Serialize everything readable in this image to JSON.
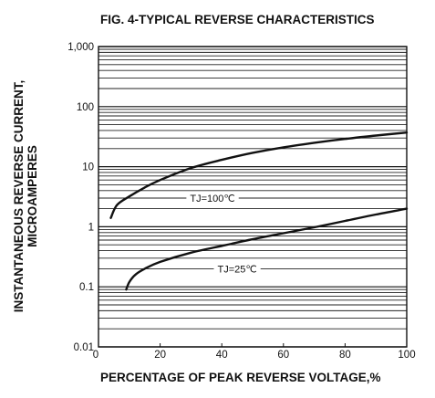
{
  "chart_data": {
    "type": "line",
    "title": "FIG. 4-TYPICAL REVERSE CHARACTERISTICS",
    "xlabel": "PERCENTAGE OF PEAK REVERSE VOLTAGE,%",
    "ylabel_line1": "INSTANTANEOUS REVERSE CURRENT,",
    "ylabel_line2": "MICROAMPERES",
    "xlim": [
      0,
      100
    ],
    "ylim": [
      0.01,
      1000
    ],
    "y_scale": "log",
    "grid": "horizontal minor log gridlines",
    "x_ticks": [
      {
        "value": 20,
        "label": "20"
      },
      {
        "value": 40,
        "label": "40"
      },
      {
        "value": 60,
        "label": "60"
      },
      {
        "value": 80,
        "label": "80"
      },
      {
        "value": 100,
        "label": "100"
      }
    ],
    "x_origin_label": "0",
    "y_ticks": [
      {
        "value": 0.01,
        "label": "0.01"
      },
      {
        "value": 0.1,
        "label": "0.1"
      },
      {
        "value": 1,
        "label": "1"
      },
      {
        "value": 10,
        "label": "10"
      },
      {
        "value": 100,
        "label": "100"
      },
      {
        "value": 1000,
        "label": "1,000"
      }
    ],
    "series": [
      {
        "name": "TJ=100℃",
        "x": [
          4,
          6,
          10,
          15,
          20,
          30,
          40,
          50,
          60,
          70,
          80,
          90,
          100
        ],
        "y": [
          1.4,
          2.3,
          3.2,
          4.5,
          6.0,
          9.5,
          13.0,
          17.0,
          21.0,
          25.0,
          29.0,
          33.0,
          37.0
        ]
      },
      {
        "name": "TJ=25℃",
        "x": [
          9,
          10,
          12,
          15,
          20,
          30,
          40,
          50,
          60,
          70,
          80,
          90,
          100
        ],
        "y": [
          0.09,
          0.12,
          0.16,
          0.2,
          0.26,
          0.37,
          0.48,
          0.62,
          0.78,
          0.98,
          1.25,
          1.6,
          2.0
        ]
      }
    ],
    "annotations": [
      {
        "text": "TJ=100℃",
        "series": "TJ=100℃",
        "at_x": 37,
        "at_y": 3.0
      },
      {
        "text": "TJ=25℃",
        "series": "TJ=25℃",
        "at_x": 45,
        "at_y": 0.2
      }
    ]
  }
}
